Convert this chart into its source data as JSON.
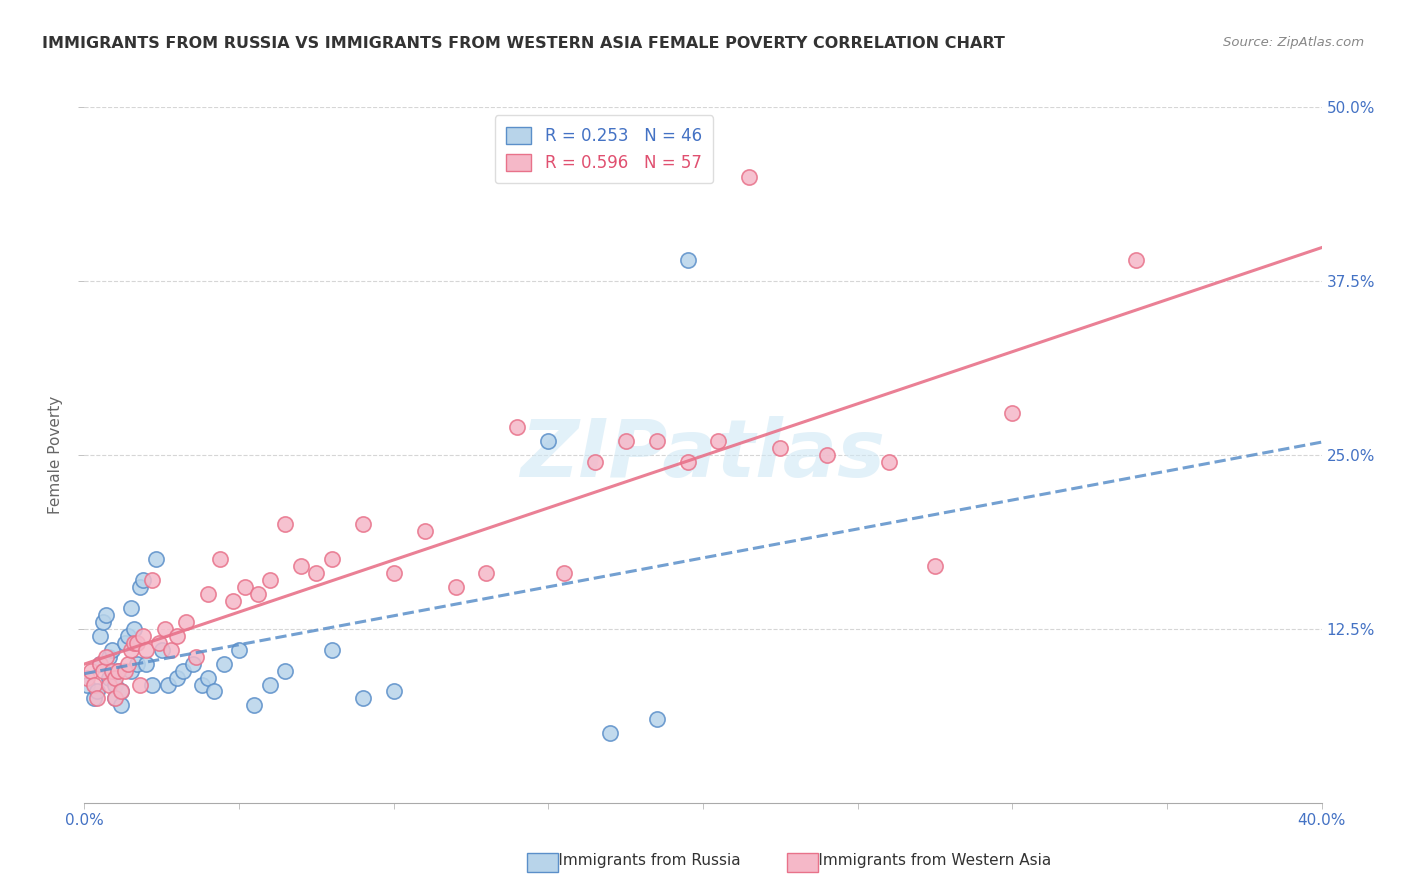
{
  "title": "IMMIGRANTS FROM RUSSIA VS IMMIGRANTS FROM WESTERN ASIA FEMALE POVERTY CORRELATION CHART",
  "source": "Source: ZipAtlas.com",
  "ylabel": "Female Poverty",
  "yticks_vals": [
    0.125,
    0.25,
    0.375,
    0.5
  ],
  "yticks_labels": [
    "12.5%",
    "25.0%",
    "37.5%",
    "50.0%"
  ],
  "legend_r_russia": "R = 0.253",
  "legend_n_russia": "N = 46",
  "legend_r_western": "R = 0.596",
  "legend_n_western": "N = 57",
  "russia_fill_color": "#b8d4ea",
  "russia_edge_color": "#5b8fc9",
  "western_fill_color": "#f5b8c8",
  "western_edge_color": "#e8728a",
  "russia_line_color": "#5b8fc9",
  "western_line_color": "#e8728a",
  "watermark_color": "#d0e8f5",
  "xlim": [
    0.0,
    0.4
  ],
  "ylim": [
    0.0,
    0.5
  ],
  "xticks": [
    0.0,
    0.05,
    0.1,
    0.15,
    0.2,
    0.25,
    0.3,
    0.35,
    0.4
  ],
  "russia_scatter_x": [
    0.001,
    0.003,
    0.004,
    0.005,
    0.005,
    0.006,
    0.007,
    0.008,
    0.008,
    0.009,
    0.01,
    0.01,
    0.011,
    0.012,
    0.012,
    0.013,
    0.014,
    0.015,
    0.015,
    0.016,
    0.017,
    0.018,
    0.019,
    0.02,
    0.022,
    0.023,
    0.025,
    0.027,
    0.03,
    0.032,
    0.035,
    0.038,
    0.04,
    0.042,
    0.045,
    0.05,
    0.055,
    0.06,
    0.065,
    0.08,
    0.09,
    0.1,
    0.15,
    0.17,
    0.185,
    0.195
  ],
  "russia_scatter_y": [
    0.085,
    0.075,
    0.08,
    0.1,
    0.12,
    0.13,
    0.135,
    0.09,
    0.105,
    0.11,
    0.075,
    0.085,
    0.095,
    0.07,
    0.08,
    0.115,
    0.12,
    0.095,
    0.14,
    0.125,
    0.1,
    0.155,
    0.16,
    0.1,
    0.085,
    0.175,
    0.11,
    0.085,
    0.09,
    0.095,
    0.1,
    0.085,
    0.09,
    0.08,
    0.1,
    0.11,
    0.07,
    0.085,
    0.095,
    0.11,
    0.075,
    0.08,
    0.26,
    0.05,
    0.06,
    0.39
  ],
  "western_scatter_x": [
    0.001,
    0.002,
    0.003,
    0.004,
    0.005,
    0.006,
    0.007,
    0.008,
    0.009,
    0.01,
    0.01,
    0.011,
    0.012,
    0.013,
    0.014,
    0.015,
    0.016,
    0.017,
    0.018,
    0.019,
    0.02,
    0.022,
    0.024,
    0.026,
    0.028,
    0.03,
    0.033,
    0.036,
    0.04,
    0.044,
    0.048,
    0.052,
    0.056,
    0.06,
    0.065,
    0.07,
    0.075,
    0.08,
    0.09,
    0.1,
    0.11,
    0.12,
    0.13,
    0.14,
    0.155,
    0.165,
    0.175,
    0.185,
    0.195,
    0.205,
    0.215,
    0.225,
    0.24,
    0.26,
    0.275,
    0.3,
    0.34
  ],
  "western_scatter_y": [
    0.09,
    0.095,
    0.085,
    0.075,
    0.1,
    0.095,
    0.105,
    0.085,
    0.095,
    0.075,
    0.09,
    0.095,
    0.08,
    0.095,
    0.1,
    0.11,
    0.115,
    0.115,
    0.085,
    0.12,
    0.11,
    0.16,
    0.115,
    0.125,
    0.11,
    0.12,
    0.13,
    0.105,
    0.15,
    0.175,
    0.145,
    0.155,
    0.15,
    0.16,
    0.2,
    0.17,
    0.165,
    0.175,
    0.2,
    0.165,
    0.195,
    0.155,
    0.165,
    0.27,
    0.165,
    0.245,
    0.26,
    0.26,
    0.245,
    0.26,
    0.45,
    0.255,
    0.25,
    0.245,
    0.17,
    0.28,
    0.39
  ],
  "background_color": "#ffffff",
  "grid_color": "#cccccc",
  "legend_text_color": "#4472c4",
  "axis_label_color": "#4472c4",
  "title_color": "#333333",
  "source_color": "#888888",
  "bottom_label_color": "#333333"
}
